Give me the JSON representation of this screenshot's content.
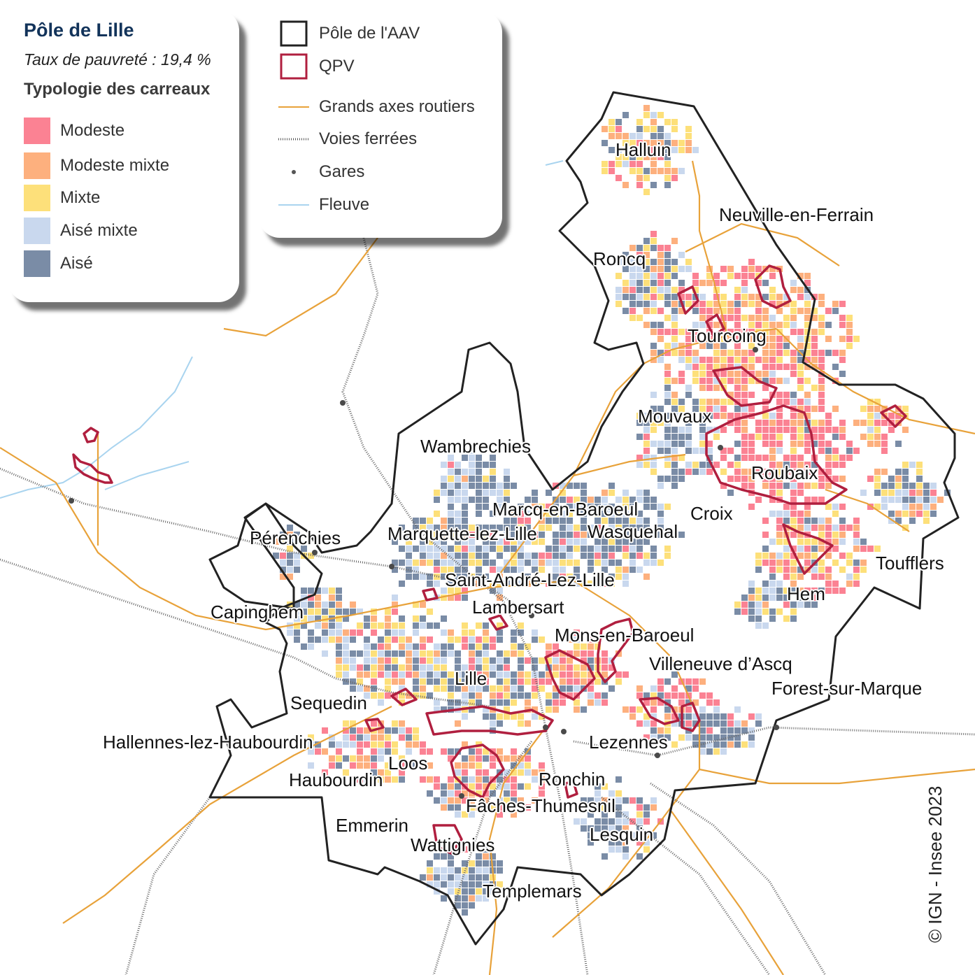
{
  "legend": {
    "title": "Pôle de Lille",
    "subtitle": "Taux de pauvreté : 19,4 %",
    "heading": "Typologie des carreaux",
    "categories": [
      {
        "label": "Modeste",
        "color": "#fb8293"
      },
      {
        "label": "Modeste mixte",
        "color": "#fdb07e"
      },
      {
        "label": "Mixte",
        "color": "#fde07a"
      },
      {
        "label": "Aisé mixte",
        "color": "#c9d8ee"
      },
      {
        "label": "Aisé",
        "color": "#7a8ca6"
      }
    ]
  },
  "layers_legend": [
    {
      "label": "Pôle de l'AAV",
      "icon": "black-outline-square-icon",
      "color": "#222222"
    },
    {
      "label": "QPV",
      "icon": "red-outline-square-icon",
      "color": "#b01f3f"
    },
    {
      "label": "Grands axes routiers",
      "icon": "orange-line-icon",
      "color": "#e8a23a"
    },
    {
      "label": "Voies ferrées",
      "icon": "railway-line-icon",
      "color": "#555555"
    },
    {
      "label": "Gares",
      "icon": "station-dot-icon",
      "color": "#555555"
    },
    {
      "label": "Fleuve",
      "icon": "river-line-icon",
      "color": "#a9d4ef"
    }
  ],
  "places": [
    "Halluin",
    "Neuville-en-Ferrain",
    "Roncq",
    "Tourcoing",
    "Mouvaux",
    "Wambrechies",
    "Roubaix",
    "Marcq-en-Baroeul",
    "Croix",
    "Pérenchies",
    "Marquette-lez-Lille",
    "Wasquehal",
    "Toufflers",
    "Saint-André-Lez-Lille",
    "Hem",
    "Lambersart",
    "Capinghem",
    "Mons-en-Baroeul",
    "Villeneuve d’Ascq",
    "Lille",
    "Forest-sur-Marque",
    "Sequedin",
    "Hallennes-lez-Haubourdin",
    "Lezennes",
    "Loos",
    "Haubourdin",
    "Ronchin",
    "Fâches-Thumesnil",
    "Emmerin",
    "Lesquin",
    "Wattignies",
    "Templemars"
  ],
  "credit": "© IGN - Insee 2023"
}
